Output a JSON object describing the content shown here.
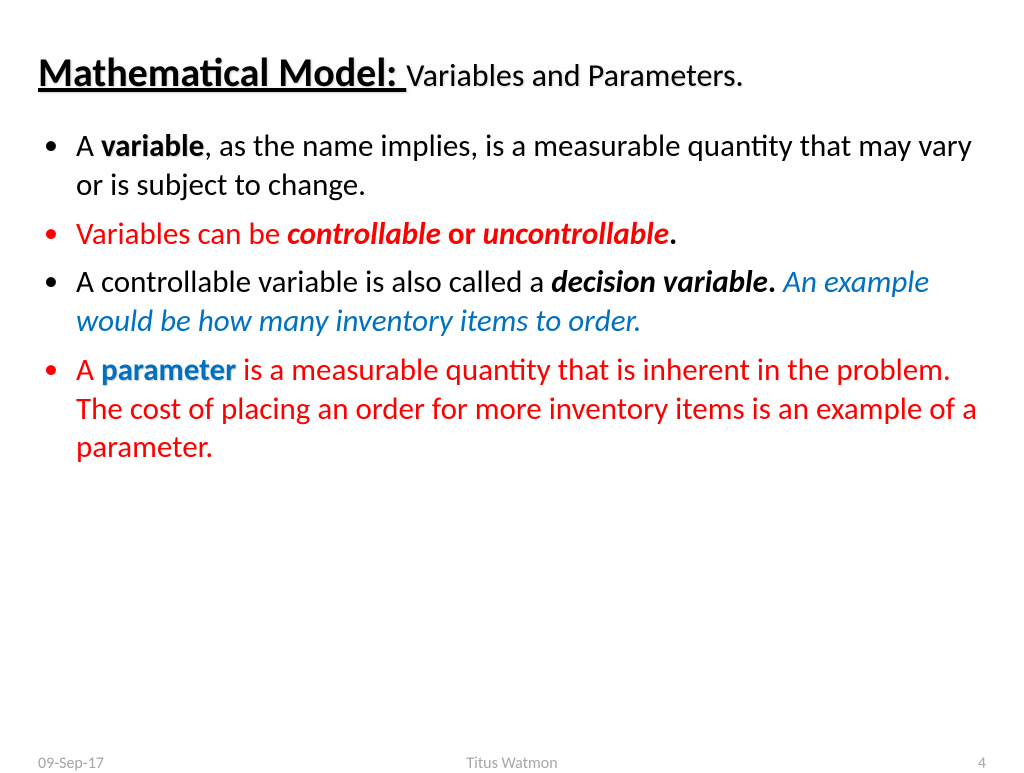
{
  "colors": {
    "background": "#ffffff",
    "text_black": "#000000",
    "text_red": "#ff0000",
    "text_blue": "#0070c0",
    "footer_gray": "#a6a6a6"
  },
  "typography": {
    "font_family": "Calibri, Arial, sans-serif",
    "title_main_size": 40,
    "title_sub_size": 32,
    "body_size": 31,
    "footer_size": 16
  },
  "title": {
    "main": "Mathematical Model: ",
    "sub": "Variables and Parameters."
  },
  "bullets": [
    {
      "marker_color": "black",
      "runs": [
        {
          "text": "A ",
          "color": "black"
        },
        {
          "text": "variable",
          "color": "black",
          "bold_outline": true
        },
        {
          "text": ", as the name implies, is a measurable quantity that may vary or is subject to change.",
          "color": "black"
        }
      ]
    },
    {
      "marker_color": "red",
      "runs": [
        {
          "text": "Variables can be ",
          "color": "red"
        },
        {
          "text": "controllable",
          "color": "red",
          "bold": true,
          "italic": true
        },
        {
          "text": " or ",
          "color": "red",
          "bold": true
        },
        {
          "text": "uncontrollable",
          "color": "red",
          "bold": true,
          "italic": true
        },
        {
          "text": ".",
          "color": "black",
          "bold": true
        }
      ]
    },
    {
      "marker_color": "black",
      "runs": [
        {
          "text": "A controllable variable is also called a ",
          "color": "black"
        },
        {
          "text": "decision variable",
          "color": "black",
          "bold": true,
          "italic": true
        },
        {
          "text": ".  ",
          "color": "black",
          "bold": true
        },
        {
          "text": "An example would be how many inventory items to order.",
          "color": "blue",
          "italic": true
        }
      ]
    },
    {
      "marker_color": "red",
      "runs": [
        {
          "text": "A ",
          "color": "red"
        },
        {
          "text": "parameter",
          "color": "blue",
          "bold_outline": true
        },
        {
          "text": " is a measurable quantity that is inherent in the problem. The cost of placing an order for more inventory items is an example of a parameter.",
          "color": "red"
        }
      ]
    }
  ],
  "footer": {
    "date": "09-Sep-17",
    "author": "Titus Watmon",
    "page": "4"
  }
}
